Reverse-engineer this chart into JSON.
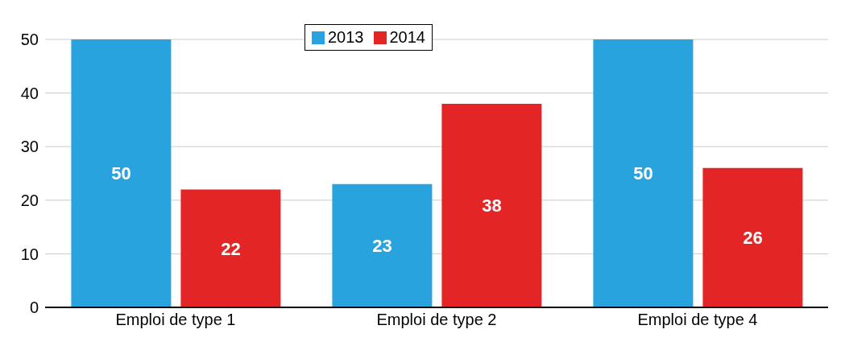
{
  "chart_data": {
    "type": "bar",
    "categories": [
      "Emploi de type 1",
      "Emploi de type 2",
      "Emploi de type 4"
    ],
    "series": [
      {
        "name": "2013",
        "color": "#29a3dd",
        "values": [
          50,
          23,
          50
        ]
      },
      {
        "name": "2014",
        "color": "#e32526",
        "values": [
          22,
          38,
          26
        ]
      }
    ],
    "ylim": [
      0,
      50
    ],
    "yticks": [
      0,
      10,
      20,
      30,
      40,
      50
    ],
    "grid": "y",
    "legend": "top",
    "data_labels": true
  }
}
